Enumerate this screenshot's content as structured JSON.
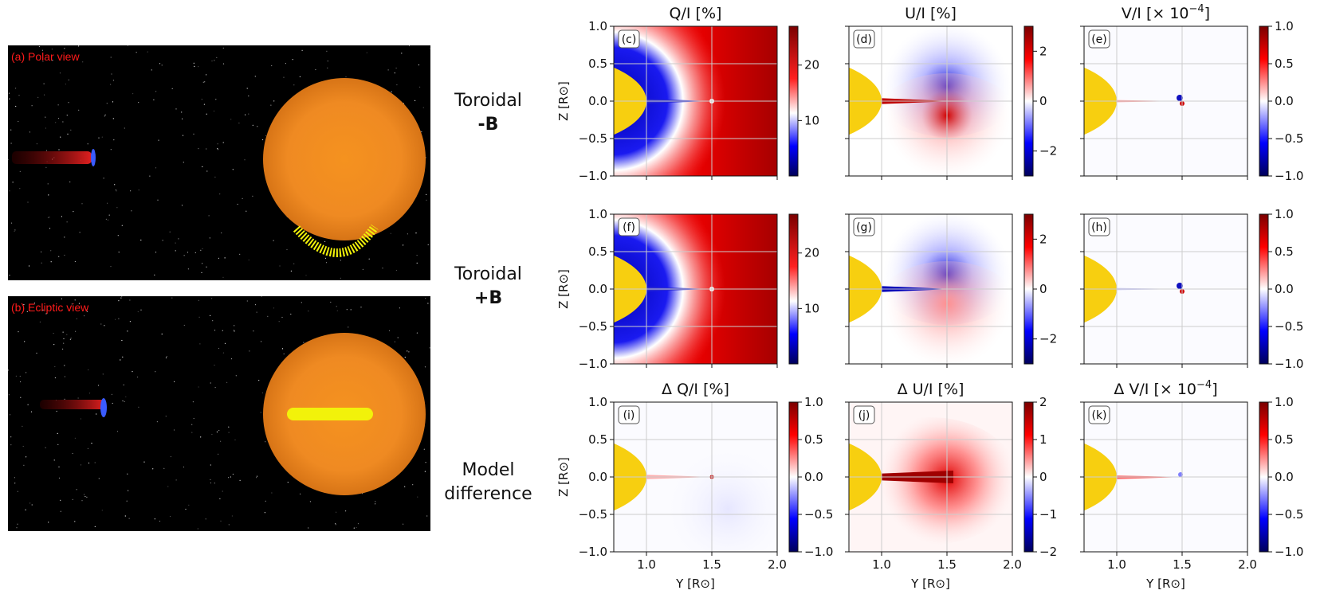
{
  "row_labels": [
    {
      "line1": "Toroidal",
      "line2": "-B"
    },
    {
      "line1": "Toroidal",
      "line2": "+B"
    },
    {
      "line1": "Model",
      "line2": "difference"
    }
  ],
  "images": [
    {
      "caption": "(a) Polar view"
    },
    {
      "caption": "(b) Ecliptic view"
    }
  ],
  "chart_data": [
    {
      "type": "heatmap",
      "panel": "c",
      "title": "Q/I [%]",
      "title_sup": "",
      "ylabel": "Z [R⊙]",
      "xlabel": "",
      "xlim": [
        0.75,
        2.0
      ],
      "ylim": [
        -1.0,
        1.0
      ],
      "xticks": [
        "1.0",
        "1.5",
        "2.0"
      ],
      "yticks": [
        "1.0",
        "0.5",
        "0.0",
        "−0.5",
        "−1.0"
      ],
      "show_xtick_labels": false,
      "show_ylabels": true,
      "colorbar": {
        "min": 0,
        "max": 27,
        "ticks": [
          10,
          20
        ],
        "tick_labels": [
          "10",
          "20"
        ],
        "scheme": "seq"
      },
      "pattern": "q"
    },
    {
      "type": "heatmap",
      "panel": "d",
      "title": "U/I [%]",
      "title_sup": "",
      "ylabel": "",
      "xlabel": "",
      "xlim": [
        0.75,
        2.0
      ],
      "ylim": [
        -1.0,
        1.0
      ],
      "xticks": [
        "1.0",
        "1.5",
        "2.0"
      ],
      "yticks": [
        "1.0",
        "0.5",
        "0.0",
        "−0.5",
        "−1.0"
      ],
      "show_xtick_labels": false,
      "show_ylabels": false,
      "colorbar": {
        "min": -3,
        "max": 3,
        "ticks": [
          -2,
          0,
          2
        ],
        "tick_labels": [
          "−2",
          "0",
          "2"
        ],
        "scheme": "div"
      },
      "pattern": "u_neg"
    },
    {
      "type": "heatmap",
      "panel": "e",
      "title": "V/I [× 10",
      "title_sup": "−4",
      "title_end": "]",
      "ylabel": "",
      "xlabel": "",
      "xlim": [
        0.75,
        2.0
      ],
      "ylim": [
        -1.0,
        1.0
      ],
      "xticks": [
        "1.0",
        "1.5",
        "2.0"
      ],
      "yticks": [
        "1.0",
        "0.5",
        "0.0",
        "−0.5",
        "−1.0"
      ],
      "show_xtick_labels": false,
      "show_ylabels": false,
      "colorbar": {
        "min": -1,
        "max": 1,
        "ticks": [
          -1,
          -0.5,
          0,
          0.5,
          1
        ],
        "tick_labels": [
          "−1.0",
          "−0.5",
          "0.0",
          "0.5",
          "1.0"
        ],
        "scheme": "div"
      },
      "pattern": "v_neg"
    },
    {
      "type": "heatmap",
      "panel": "f",
      "title": "",
      "ylabel": "Z [R⊙]",
      "xlabel": "",
      "xlim": [
        0.75,
        2.0
      ],
      "ylim": [
        -1.0,
        1.0
      ],
      "xticks": [
        "1.0",
        "1.5",
        "2.0"
      ],
      "yticks": [
        "1.0",
        "0.5",
        "0.0",
        "−0.5",
        "−1.0"
      ],
      "show_xtick_labels": false,
      "show_ylabels": true,
      "colorbar": {
        "min": 0,
        "max": 27,
        "ticks": [
          10,
          20
        ],
        "tick_labels": [
          "10",
          "20"
        ],
        "scheme": "seq"
      },
      "pattern": "q"
    },
    {
      "type": "heatmap",
      "panel": "g",
      "title": "",
      "ylabel": "",
      "xlabel": "",
      "xlim": [
        0.75,
        2.0
      ],
      "ylim": [
        -1.0,
        1.0
      ],
      "xticks": [
        "1.0",
        "1.5",
        "2.0"
      ],
      "yticks": [
        "1.0",
        "0.5",
        "0.0",
        "−0.5",
        "−1.0"
      ],
      "show_xtick_labels": false,
      "show_ylabels": false,
      "colorbar": {
        "min": -3,
        "max": 3,
        "ticks": [
          -2,
          0,
          2
        ],
        "tick_labels": [
          "−2",
          "0",
          "2"
        ],
        "scheme": "div"
      },
      "pattern": "u_pos"
    },
    {
      "type": "heatmap",
      "panel": "h",
      "title": "",
      "ylabel": "",
      "xlabel": "",
      "xlim": [
        0.75,
        2.0
      ],
      "ylim": [
        -1.0,
        1.0
      ],
      "xticks": [
        "1.0",
        "1.5",
        "2.0"
      ],
      "yticks": [
        "1.0",
        "0.5",
        "0.0",
        "−0.5",
        "−1.0"
      ],
      "show_xtick_labels": false,
      "show_ylabels": false,
      "colorbar": {
        "min": -1,
        "max": 1,
        "ticks": [
          -1,
          -0.5,
          0,
          0.5,
          1
        ],
        "tick_labels": [
          "−1.0",
          "−0.5",
          "0.0",
          "0.5",
          "1.0"
        ],
        "scheme": "div"
      },
      "pattern": "v_pos"
    },
    {
      "type": "heatmap",
      "panel": "i",
      "title": "Δ Q/I [%]",
      "title_sup": "",
      "ylabel": "Z [R⊙]",
      "xlabel": "Y [R⊙]",
      "xlim": [
        0.75,
        2.0
      ],
      "ylim": [
        -1.0,
        1.0
      ],
      "xticks": [
        "1.0",
        "1.5",
        "2.0"
      ],
      "yticks": [
        "1.0",
        "0.5",
        "0.0",
        "−0.5",
        "−1.0"
      ],
      "show_xtick_labels": true,
      "show_ylabels": true,
      "colorbar": {
        "min": -1,
        "max": 1,
        "ticks": [
          -1,
          -0.5,
          0,
          0.5,
          1
        ],
        "tick_labels": [
          "−1.0",
          "−0.5",
          "0.0",
          "0.5",
          "1.0"
        ],
        "scheme": "div"
      },
      "pattern": "dq"
    },
    {
      "type": "heatmap",
      "panel": "j",
      "title": "Δ U/I [%]",
      "title_sup": "",
      "ylabel": "",
      "xlabel": "Y [R⊙]",
      "xlim": [
        0.75,
        2.0
      ],
      "ylim": [
        -1.0,
        1.0
      ],
      "xticks": [
        "1.0",
        "1.5",
        "2.0"
      ],
      "yticks": [
        "1.0",
        "0.5",
        "0.0",
        "−0.5",
        "−1.0"
      ],
      "show_xtick_labels": true,
      "show_ylabels": false,
      "colorbar": {
        "min": -2,
        "max": 2,
        "ticks": [
          -2,
          -1,
          0,
          1,
          2
        ],
        "tick_labels": [
          "−2",
          "−1",
          "0",
          "1",
          "2"
        ],
        "scheme": "div"
      },
      "pattern": "du"
    },
    {
      "type": "heatmap",
      "panel": "k",
      "title": "Δ V/I [× 10",
      "title_sup": "−4",
      "title_end": "]",
      "ylabel": "",
      "xlabel": "Y [R⊙]",
      "xlim": [
        0.75,
        2.0
      ],
      "ylim": [
        -1.0,
        1.0
      ],
      "xticks": [
        "1.0",
        "1.5",
        "2.0"
      ],
      "yticks": [
        "1.0",
        "0.5",
        "0.0",
        "−0.5",
        "−1.0"
      ],
      "show_xtick_labels": true,
      "show_ylabels": false,
      "colorbar": {
        "min": -1,
        "max": 1,
        "ticks": [
          -1,
          -0.5,
          0,
          0.5,
          1
        ],
        "tick_labels": [
          "−1.0",
          "−0.5",
          "0.0",
          "0.5",
          "1.0"
        ],
        "scheme": "div"
      },
      "pattern": "dv"
    }
  ],
  "colors": {
    "sun": "#f7cf10",
    "red": "#d40000",
    "blue": "#0000c8",
    "white": "#ffffff",
    "grid": "#cccccc",
    "caption": "#ff1a1a"
  }
}
